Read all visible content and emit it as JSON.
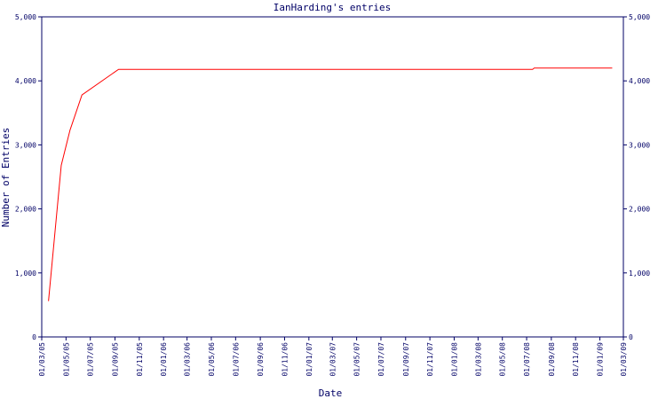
{
  "chart_data": {
    "type": "line",
    "title": "IanHarding's entries",
    "x_label": "Date",
    "y_label": "Number of Entries",
    "x": [
      "18/03/05",
      "19/04/05",
      "11/05/05",
      "10/06/05",
      "10/09/05",
      "16/07/08",
      "20/07/08",
      "01/02/09"
    ],
    "series": [
      {
        "name": "IanHarding",
        "color": "#ff0000",
        "values": [
          560,
          2680,
          3230,
          3780,
          4180,
          4180,
          4200,
          4200
        ]
      }
    ],
    "xlim": [
      "01/03/05",
      "01/03/09"
    ],
    "xticks": [
      "01/03/05",
      "01/05/05",
      "01/07/05",
      "01/09/05",
      "01/11/05",
      "01/01/06",
      "01/03/06",
      "01/05/06",
      "01/07/06",
      "01/09/06",
      "01/11/06",
      "01/01/07",
      "01/03/07",
      "01/05/07",
      "01/07/07",
      "01/09/07",
      "01/11/07",
      "01/01/08",
      "01/03/08",
      "01/05/08",
      "01/07/08",
      "01/09/08",
      "01/11/08",
      "01/01/09",
      "01/03/09"
    ],
    "ylim": [
      0,
      5000
    ],
    "yticks": [
      0,
      {
        "value": 1000,
        "label": "1,000"
      },
      {
        "value": 2000,
        "label": "2,000"
      },
      {
        "value": 3000,
        "label": "3,000"
      },
      {
        "value": 4000,
        "label": "4,000"
      },
      {
        "value": 5000,
        "label": "5,000"
      }
    ],
    "grid": false
  }
}
